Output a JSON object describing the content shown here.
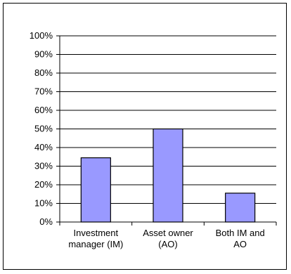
{
  "chart_data": {
    "type": "bar",
    "categories": [
      [
        "Investment",
        "manager (IM)"
      ],
      [
        "Asset owner",
        "(AO)"
      ],
      [
        "Both IM and",
        "AO"
      ]
    ],
    "values": [
      34.5,
      50,
      15.5
    ],
    "ylim": [
      0,
      100
    ],
    "yticks": [
      "0%",
      "10%",
      "20%",
      "30%",
      "40%",
      "50%",
      "60%",
      "70%",
      "80%",
      "90%",
      "100%"
    ],
    "grid": true,
    "bar_color": "#9999ff",
    "bar_edge_color": "#000000",
    "legend": "none"
  }
}
